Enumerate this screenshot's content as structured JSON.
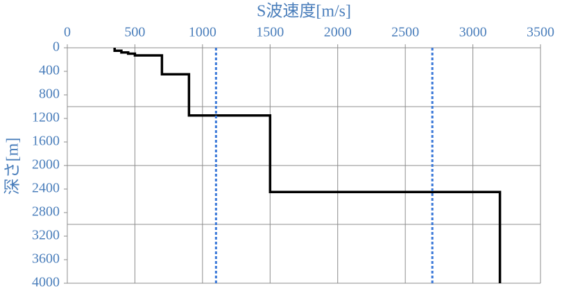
{
  "chart_data": {
    "type": "line",
    "title": "S波速度[m/s]",
    "y_label": "深さ[m]",
    "xlim": [
      0,
      3500
    ],
    "xticks": [
      0,
      500,
      1000,
      1500,
      2000,
      2500,
      3000,
      3500
    ],
    "ylim": [
      0,
      4000
    ],
    "yticks": [
      0,
      400,
      800,
      1200,
      1600,
      2000,
      2400,
      2800,
      3200,
      3600,
      4000
    ],
    "y_inverted": true,
    "x_grid": true,
    "y_grid_lines": [
      1000,
      2000,
      3000
    ],
    "series": [
      {
        "color": "#000000",
        "dashed": false,
        "x": [
          350,
          350,
          400,
          400,
          450,
          450,
          500,
          500,
          700,
          700,
          900,
          900,
          1500,
          1500,
          3200,
          3200
        ],
        "values": [
          0,
          50,
          50,
          80,
          80,
          100,
          100,
          130,
          130,
          450,
          450,
          1150,
          1150,
          2450,
          2450,
          4000
        ]
      },
      {
        "color": "#3a78d8",
        "dashed": true,
        "x": [
          1100,
          1100
        ],
        "values": [
          0,
          4000
        ]
      },
      {
        "color": "#3a78d8",
        "dashed": true,
        "x": [
          2700,
          2700
        ],
        "values": [
          0,
          4000
        ]
      }
    ]
  }
}
